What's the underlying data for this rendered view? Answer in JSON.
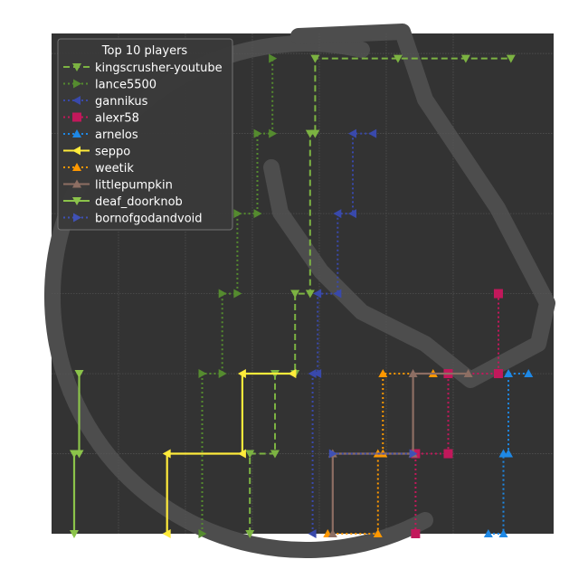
{
  "chart_data": {
    "type": "line",
    "title": "",
    "xlabel": "",
    "ylabel": "",
    "xlim": [
      0,
      100
    ],
    "ylim": [
      0,
      100
    ],
    "grid": true,
    "legend": {
      "title": "Top 10 players",
      "placement": "top-left"
    },
    "series": [
      {
        "name": "kingscrusher-youtube",
        "color": "#7cb342",
        "linestyle": "dashed",
        "marker": "triangle-down",
        "points": [
          [
            39.5,
            0
          ],
          [
            39.5,
            16
          ],
          [
            44.5,
            16
          ],
          [
            44.5,
            32
          ],
          [
            48.5,
            32
          ],
          [
            48.5,
            48
          ],
          [
            51.5,
            48
          ],
          [
            51.5,
            80
          ],
          [
            52.5,
            80
          ],
          [
            52.5,
            95
          ],
          [
            69,
            95
          ],
          [
            82.5,
            95
          ],
          [
            91.5,
            95
          ]
        ]
      },
      {
        "name": "lance5500",
        "color": "#558b2f",
        "linestyle": "dotted",
        "marker": "triangle-right",
        "points": [
          [
            30,
            0
          ],
          [
            30,
            32
          ],
          [
            34,
            32
          ],
          [
            34,
            48
          ],
          [
            37,
            48
          ],
          [
            37,
            64
          ],
          [
            41,
            64
          ],
          [
            41,
            80
          ],
          [
            44,
            80
          ],
          [
            44,
            95
          ]
        ]
      },
      {
        "name": "gannikus",
        "color": "#3949ab",
        "linestyle": "dotted",
        "marker": "triangle-left",
        "points": [
          [
            52,
            0
          ],
          [
            52,
            32
          ],
          [
            53,
            32
          ],
          [
            53,
            48
          ],
          [
            57,
            48
          ],
          [
            57,
            64
          ],
          [
            60,
            64
          ],
          [
            60,
            80
          ],
          [
            64,
            80
          ]
        ]
      },
      {
        "name": "alexr58",
        "color": "#c2185b",
        "linestyle": "dotted",
        "marker": "square",
        "points": [
          [
            72.5,
            0
          ],
          [
            72.5,
            16
          ],
          [
            79,
            16
          ],
          [
            79,
            32
          ],
          [
            89,
            32
          ],
          [
            89,
            48
          ]
        ]
      },
      {
        "name": "arnelos",
        "color": "#1e88e5",
        "linestyle": "dotted",
        "marker": "triangle-up",
        "points": [
          [
            87,
            0
          ],
          [
            90,
            0
          ],
          [
            90,
            16
          ],
          [
            91,
            16
          ],
          [
            91,
            32
          ],
          [
            95,
            32
          ]
        ]
      },
      {
        "name": "seppo",
        "color": "#ffeb3b",
        "linestyle": "solid",
        "marker": "triangle-left",
        "points": [
          [
            23,
            0
          ],
          [
            23,
            16
          ],
          [
            38,
            16
          ],
          [
            38,
            32
          ],
          [
            48,
            32
          ]
        ]
      },
      {
        "name": "weetik",
        "color": "#ff9800",
        "linestyle": "dotted",
        "marker": "triangle-up",
        "points": [
          [
            55,
            0
          ],
          [
            65,
            0
          ],
          [
            65,
            16
          ],
          [
            66,
            16
          ],
          [
            66,
            32
          ],
          [
            76,
            32
          ]
        ]
      },
      {
        "name": "littlepumpkin",
        "color": "#8d6e63",
        "linestyle": "solid",
        "marker": "triangle-up",
        "points": [
          [
            56,
            0
          ],
          [
            56,
            16
          ],
          [
            72,
            16
          ],
          [
            72,
            32
          ],
          [
            83,
            32
          ]
        ]
      },
      {
        "name": "deaf_doorknob",
        "color": "#8bc34a",
        "linestyle": "solid",
        "marker": "triangle-down",
        "points": [
          [
            4.5,
            0
          ],
          [
            4.5,
            16
          ],
          [
            5.5,
            16
          ],
          [
            5.5,
            32
          ]
        ]
      },
      {
        "name": "bornofgodandvoid",
        "color": "#3f51b5",
        "linestyle": "dotted",
        "marker": "triangle-right",
        "points": [
          [
            56,
            16
          ],
          [
            72,
            16
          ]
        ]
      }
    ]
  }
}
